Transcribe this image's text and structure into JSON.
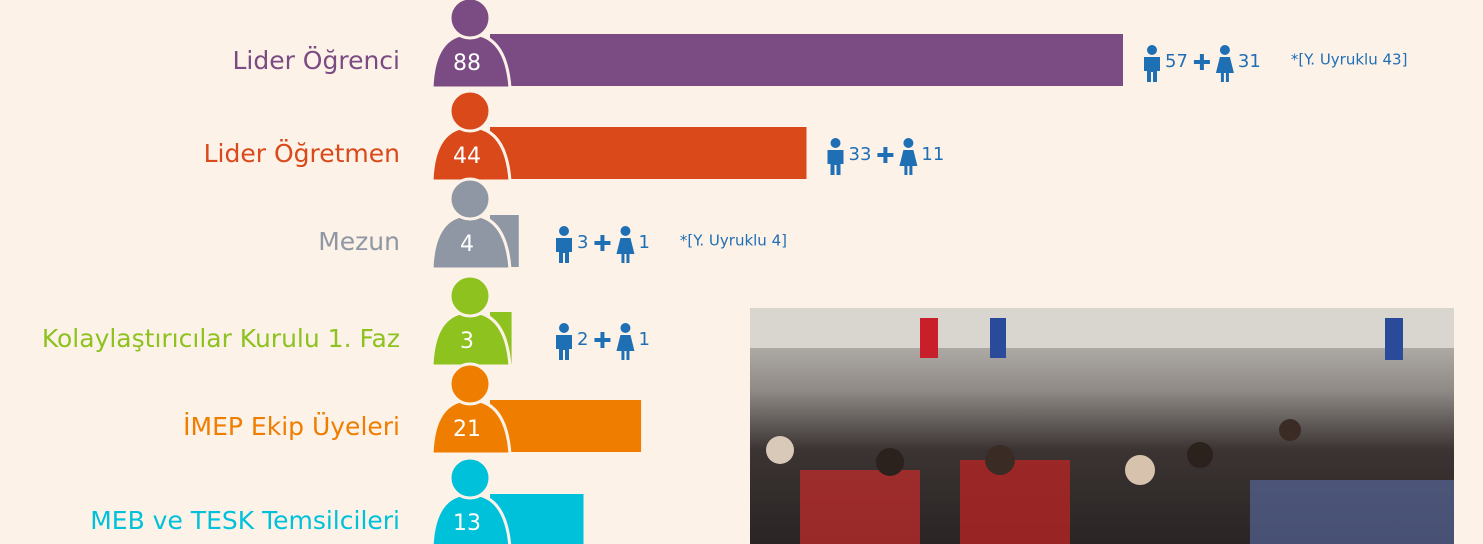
{
  "chart_data": {
    "type": "bar",
    "orientation": "horizontal",
    "categories": [
      "Lider Öğrenci",
      "Lider Öğretmen",
      "Mezun",
      "Kolaylaştırıcılar Kurulu 1. Faz",
      "İMEP Ekip Üyeleri",
      "MEB ve TESK Temsilcileri"
    ],
    "values": [
      88,
      44,
      4,
      3,
      21,
      13
    ],
    "colors": [
      "#7b4b83",
      "#d9491a",
      "#8e97a3",
      "#8dc21f",
      "#ef7d00",
      "#00c1da"
    ],
    "breakdown": [
      {
        "male": 57,
        "female": 31,
        "note": "*[Y. Uyruklu 43]"
      },
      {
        "male": 33,
        "female": 11
      },
      {
        "male": 3,
        "female": 1,
        "note": "*[Y. Uyruklu 4]"
      },
      {
        "male": 2,
        "female": 1
      },
      null,
      null
    ]
  }
}
